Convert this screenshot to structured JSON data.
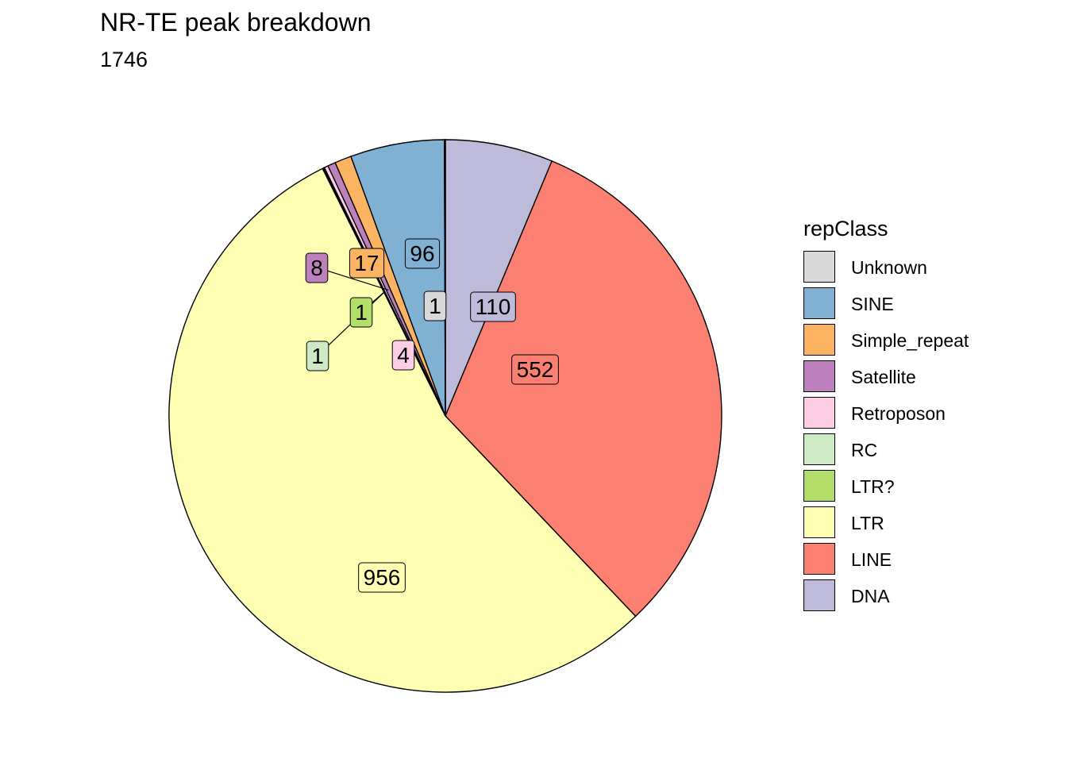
{
  "title": "NR-TE peak breakdown",
  "subtitle": "1746",
  "legend": {
    "title": "repClass",
    "items": [
      {
        "label": "Unknown",
        "color": "#d9d9d9"
      },
      {
        "label": "SINE",
        "color": "#80b1d3"
      },
      {
        "label": "Simple_repeat",
        "color": "#fdb462"
      },
      {
        "label": "Satellite",
        "color": "#bc80bd"
      },
      {
        "label": "Retroposon",
        "color": "#fccde5"
      },
      {
        "label": "RC",
        "color": "#ccebc5"
      },
      {
        "label": "LTR?",
        "color": "#b3de69"
      },
      {
        "label": "LTR",
        "color": "#ffffb3"
      },
      {
        "label": "LINE",
        "color": "#fb8072"
      },
      {
        "label": "DNA",
        "color": "#bebada"
      }
    ]
  },
  "chart_data": {
    "type": "pie",
    "title": "NR-TE peak breakdown",
    "subtitle": "1746",
    "total": 1746,
    "start": "12 o'clock",
    "direction": "clockwise",
    "slices": [
      {
        "label": "DNA",
        "value": 110,
        "color": "#bebada"
      },
      {
        "label": "LINE",
        "value": 552,
        "color": "#fb8072"
      },
      {
        "label": "LTR",
        "value": 956,
        "color": "#ffffb3"
      },
      {
        "label": "LTR?",
        "value": 1,
        "color": "#b3de69"
      },
      {
        "label": "RC",
        "value": 1,
        "color": "#ccebc5"
      },
      {
        "label": "Retroposon",
        "value": 4,
        "color": "#fccde5"
      },
      {
        "label": "Satellite",
        "value": 8,
        "color": "#bc80bd"
      },
      {
        "label": "Simple_repeat",
        "value": 17,
        "color": "#fdb462"
      },
      {
        "label": "SINE",
        "value": 96,
        "color": "#80b1d3"
      },
      {
        "label": "Unknown",
        "value": 1,
        "color": "#d9d9d9"
      }
    ]
  }
}
